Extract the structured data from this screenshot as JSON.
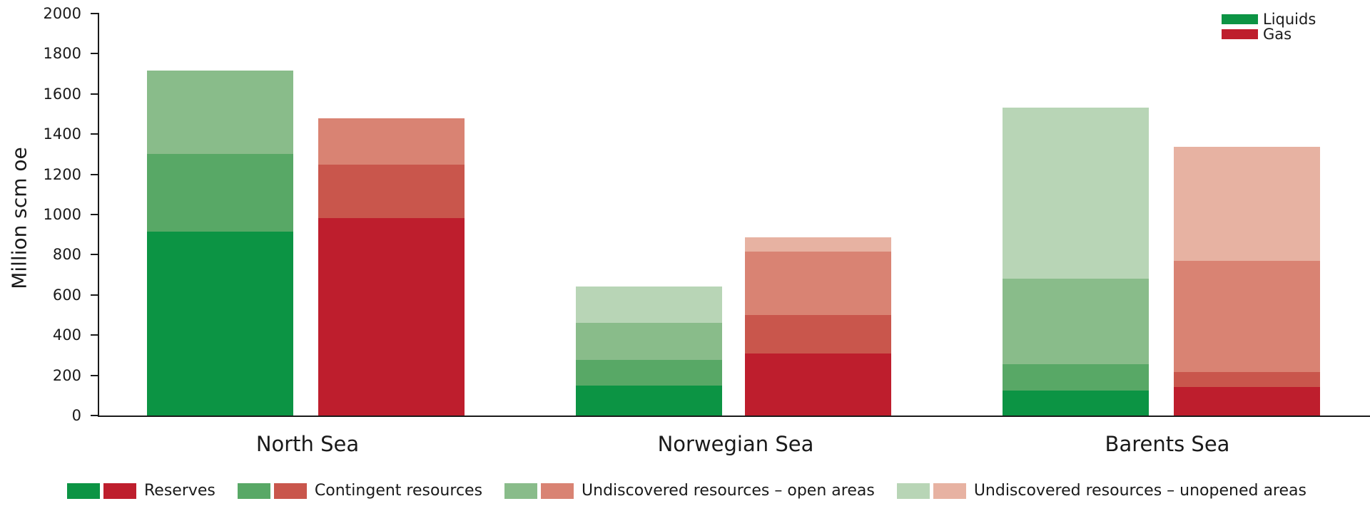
{
  "chart_data": {
    "type": "bar",
    "subtype": "grouped-stacked",
    "title": "",
    "xlabel": "",
    "ylabel": "Million scm oe",
    "ylim": [
      0,
      2000
    ],
    "yticks": [
      0,
      200,
      400,
      600,
      800,
      1000,
      1200,
      1400,
      1600,
      1800,
      2000
    ],
    "grid": false,
    "categories": [
      "North Sea",
      "Norwegian Sea",
      "Barents Sea"
    ],
    "groups": [
      "Liquids",
      "Gas"
    ],
    "stack_series": [
      "Reserves",
      "Contingent resources",
      "Undiscovered resources – open areas",
      "Undiscovered resources – unopened areas"
    ],
    "series": [
      {
        "category": "North Sea",
        "group": "Liquids",
        "values": [
          915,
          387,
          414,
          0
        ],
        "total": 1716
      },
      {
        "category": "North Sea",
        "group": "Gas",
        "values": [
          982,
          266,
          231,
          0
        ],
        "total": 1479
      },
      {
        "category": "Norwegian Sea",
        "group": "Liquids",
        "values": [
          149,
          128,
          184,
          181
        ],
        "total": 642
      },
      {
        "category": "Norwegian Sea",
        "group": "Gas",
        "values": [
          309,
          190,
          316,
          72
        ],
        "total": 887
      },
      {
        "category": "Barents Sea",
        "group": "Liquids",
        "values": [
          124,
          130,
          428,
          850
        ],
        "total": 1532
      },
      {
        "category": "Barents Sea",
        "group": "Gas",
        "values": [
          143,
          73,
          554,
          567
        ],
        "total": 1337
      }
    ],
    "colors": {
      "Liquids": [
        "#0c9444",
        "#58a866",
        "#89bc8a",
        "#b8d5b6"
      ],
      "Gas": [
        "#be1e2d",
        "#c9564c",
        "#d98373",
        "#e7b2a2"
      ]
    },
    "legend_position": "top-right (groups), bottom (stack series)"
  },
  "legend_top": [
    {
      "label": "Liquids",
      "color": "#0c9444"
    },
    {
      "label": "Gas",
      "color": "#be1e2d"
    }
  ],
  "legend_bottom": [
    {
      "label": "Reserves",
      "liquids_color": "#0c9444",
      "gas_color": "#be1e2d"
    },
    {
      "label": "Contingent resources",
      "liquids_color": "#58a866",
      "gas_color": "#c9564c"
    },
    {
      "label": "Undiscovered resources – open areas",
      "liquids_color": "#89bc8a",
      "gas_color": "#d98373"
    },
    {
      "label": "Undiscovered resources – unopened areas",
      "liquids_color": "#b8d5b6",
      "gas_color": "#e7b2a2"
    }
  ]
}
